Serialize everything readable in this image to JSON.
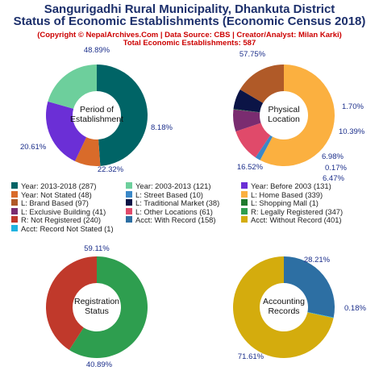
{
  "header": {
    "title_line1": "Sangurigadhi Rural Municipality, Dhankuta District",
    "title_line2": "Status of Economic Establishments (Economic Census 2018)",
    "subtitle": "(Copyright © NepalArchives.Com | Data Source: CBS | Creator/Analyst: Milan Karki)",
    "total": "Total Economic Establishments: 587"
  },
  "legend": [
    {
      "label": "Year: 2013-2018 (287)",
      "color": "#006466"
    },
    {
      "label": "Year: 2003-2013 (121)",
      "color": "#6dcf9c"
    },
    {
      "label": "Year: Before 2003 (131)",
      "color": "#6b2fd6"
    },
    {
      "label": "Year: Not Stated (48)",
      "color": "#d96b2a"
    },
    {
      "label": "L: Street Based (10)",
      "color": "#3a88c8"
    },
    {
      "label": "L: Home Based (339)",
      "color": "#fbb040"
    },
    {
      "label": "L: Brand Based (97)",
      "color": "#b05a28"
    },
    {
      "label": "L: Traditional Market (38)",
      "color": "#0b1446"
    },
    {
      "label": "L: Shopping Mall (1)",
      "color": "#1f7a2e"
    },
    {
      "label": "L: Exclusive Building (41)",
      "color": "#7a2c70"
    },
    {
      "label": "L: Other Locations (61)",
      "color": "#e04a6a"
    },
    {
      "label": "R: Legally Registered (347)",
      "color": "#2e9e4f"
    },
    {
      "label": "R: Not Registered (240)",
      "color": "#c0392b"
    },
    {
      "label": "Acct: With Record (158)",
      "color": "#2d6fa3"
    },
    {
      "label": "Acct: Without Record (401)",
      "color": "#d4ac0d"
    },
    {
      "label": "Acct: Record Not Stated (1)",
      "color": "#1fb3e0"
    }
  ],
  "chart_data": [
    {
      "type": "pie",
      "title": "Period of Establishment",
      "categories": [
        "Year: 2013-2018",
        "Year: Not Stated",
        "Year: Before 2003",
        "Year: 2003-2013"
      ],
      "values": [
        287,
        48,
        131,
        121
      ],
      "percent_labels": [
        "48.89%",
        "8.18%",
        "22.32%",
        "20.61%"
      ],
      "colors": [
        "#006466",
        "#d96b2a",
        "#6b2fd6",
        "#6dcf9c"
      ]
    },
    {
      "type": "pie",
      "title": "Physical Location",
      "categories": [
        "L: Home Based",
        "L: Street Based",
        "L: Other Locations",
        "L: Exclusive Building",
        "L: Shopping Mall",
        "L: Traditional Market",
        "L: Brand Based"
      ],
      "values": [
        339,
        10,
        61,
        41,
        1,
        38,
        97
      ],
      "percent_labels": [
        "57.75%",
        "1.70%",
        "10.39%",
        "6.98%",
        "0.17%",
        "6.47%",
        "16.52%"
      ],
      "colors": [
        "#fbb040",
        "#3a88c8",
        "#e04a6a",
        "#7a2c70",
        "#1f7a2e",
        "#0b1446",
        "#b05a28"
      ]
    },
    {
      "type": "pie",
      "title": "Registration Status",
      "categories": [
        "R: Legally Registered",
        "R: Not Registered"
      ],
      "values": [
        347,
        240
      ],
      "percent_labels": [
        "59.11%",
        "40.89%"
      ],
      "colors": [
        "#2e9e4f",
        "#c0392b"
      ]
    },
    {
      "type": "pie",
      "title": "Accounting Records",
      "categories": [
        "Acct: With Record",
        "Acct: Record Not Stated",
        "Acct: Without Record"
      ],
      "values": [
        158,
        1,
        401
      ],
      "percent_labels": [
        "28.21%",
        "0.18%",
        "71.61%"
      ],
      "colors": [
        "#2d6fa3",
        "#1fb3e0",
        "#d4ac0d"
      ]
    }
  ]
}
